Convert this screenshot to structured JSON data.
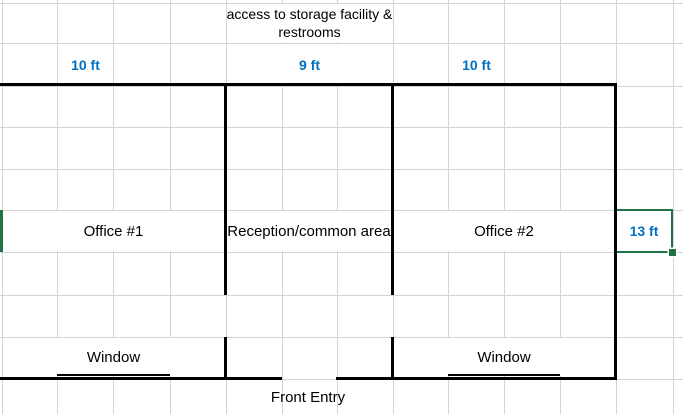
{
  "header": {
    "line1": "access to storage facility &",
    "line2": "restrooms"
  },
  "dimensions": {
    "top": [
      {
        "label": "10 ft"
      },
      {
        "label": "9 ft"
      },
      {
        "label": "10 ft"
      }
    ],
    "side": {
      "label": "13 ft"
    }
  },
  "rooms": [
    {
      "name": "Office #1"
    },
    {
      "name": "Reception/common area"
    },
    {
      "name": "Office #2"
    }
  ],
  "windows": [
    {
      "label": "Window"
    },
    {
      "label": "Window"
    }
  ],
  "entry": {
    "label": "Front Entry"
  },
  "colors": {
    "dimension_text": "#0070C0",
    "selection_green": "#217346",
    "wall": "#000000",
    "gridline": "#D4D4D4"
  }
}
